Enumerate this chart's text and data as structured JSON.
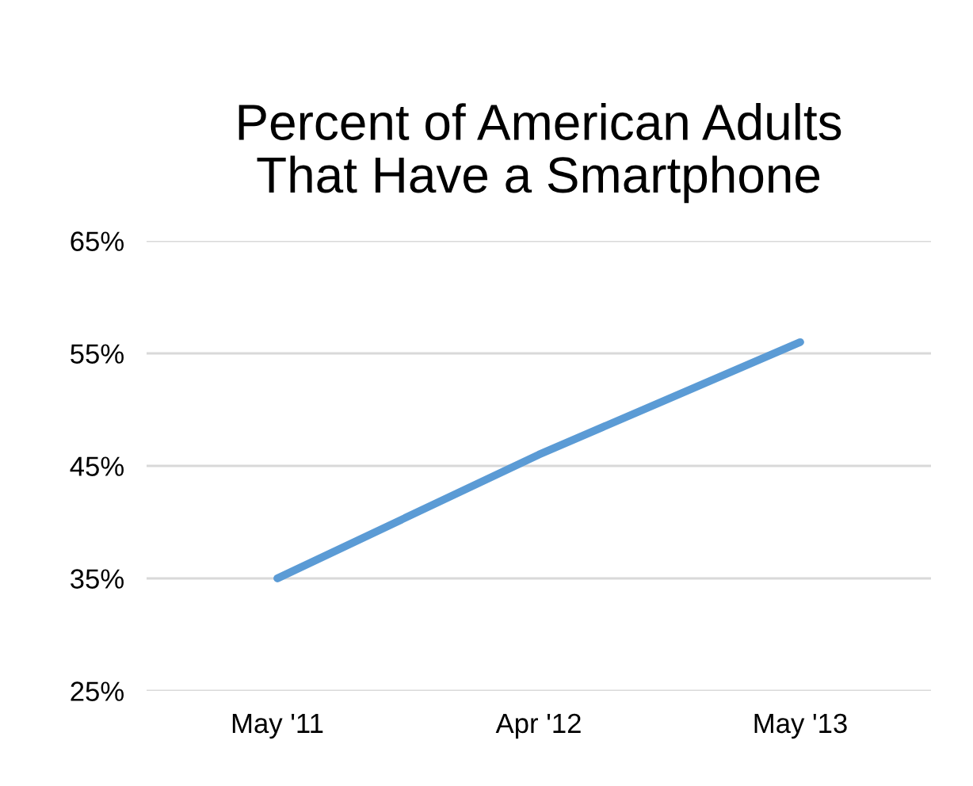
{
  "chart_data": {
    "type": "line",
    "title": "Percent of American Adults\nThat Have a Smartphone",
    "categories": [
      "May '11",
      "Apr '12",
      "May '13"
    ],
    "series": [
      {
        "color": "#5b9bd5",
        "values": [
          35,
          46,
          56
        ]
      }
    ],
    "ylim": [
      25,
      65
    ],
    "yticks": [
      {
        "value": 25,
        "label": "25%"
      },
      {
        "value": 35,
        "label": "35%"
      },
      {
        "value": 45,
        "label": "45%"
      },
      {
        "value": 55,
        "label": "55%"
      },
      {
        "value": 65,
        "label": "65%"
      }
    ],
    "grid": "y",
    "marker": "none",
    "line_style": "solid"
  }
}
